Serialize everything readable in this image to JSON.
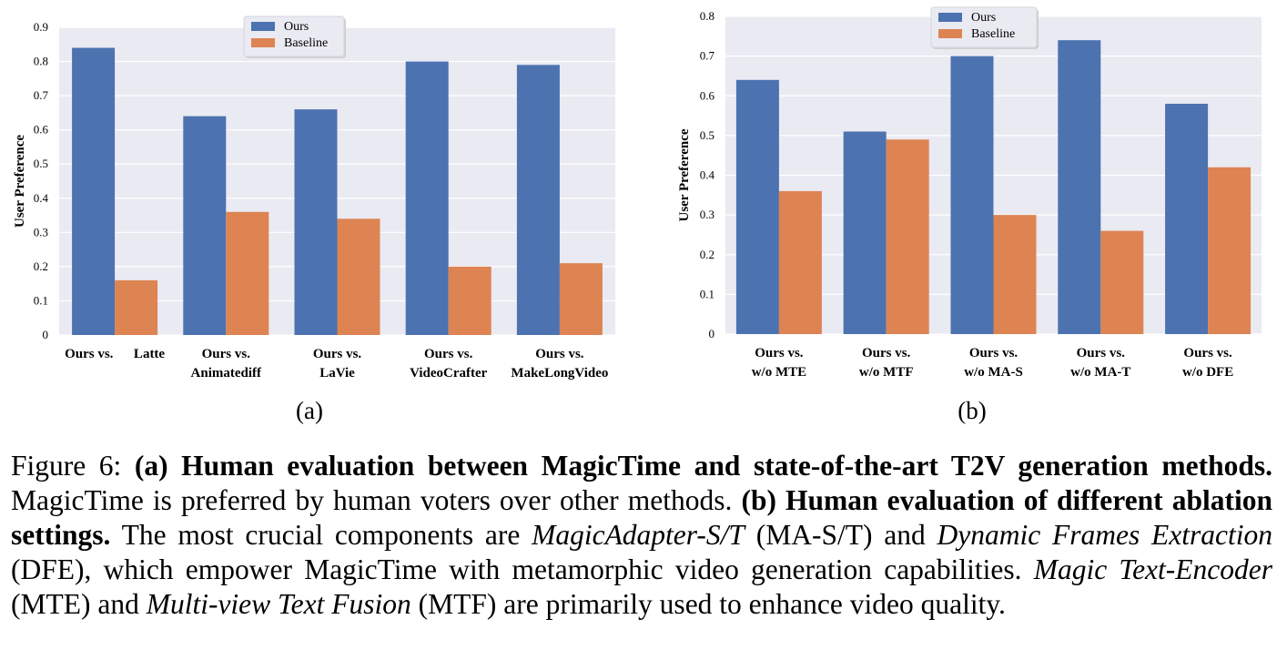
{
  "chart_data": [
    {
      "type": "bar",
      "ylabel": "User Preference",
      "ylim": [
        0,
        0.9
      ],
      "yticks": [
        "0",
        "0.1",
        "0.2",
        "0.3",
        "0.4",
        "0.5",
        "0.6",
        "0.7",
        "0.8",
        "0.9"
      ],
      "legend_position": "top-center",
      "grid": true,
      "categories": [
        [
          "Ours vs.      Latte"
        ],
        [
          "Ours vs.",
          "Animatediff"
        ],
        [
          "Ours vs.",
          "LaVie"
        ],
        [
          "Ours vs.",
          "VideoCrafter"
        ],
        [
          "Ours vs.",
          "MakeLongVideo"
        ]
      ],
      "series": [
        {
          "name": "Ours",
          "color": "#4c72b0",
          "values": [
            0.84,
            0.64,
            0.66,
            0.8,
            0.79
          ]
        },
        {
          "name": "Baseline",
          "color": "#dd8452",
          "values": [
            0.16,
            0.36,
            0.34,
            0.2,
            0.21
          ]
        }
      ],
      "panel_label": "(a)"
    },
    {
      "type": "bar",
      "ylabel": "User Preference",
      "ylim": [
        0,
        0.8
      ],
      "yticks": [
        "0",
        "0.1",
        "0.2",
        "0.3",
        "0.4",
        "0.5",
        "0.6",
        "0.7",
        "0.8"
      ],
      "legend_position": "top-center",
      "grid": true,
      "categories": [
        [
          "Ours vs.",
          "w/o MTE"
        ],
        [
          "Ours vs.",
          "w/o MTF"
        ],
        [
          "Ours vs.",
          "w/o MA-S"
        ],
        [
          "Ours vs.",
          "w/o MA-T"
        ],
        [
          "Ours vs.",
          "w/o DFE"
        ]
      ],
      "series": [
        {
          "name": "Ours",
          "color": "#4c72b0",
          "values": [
            0.64,
            0.51,
            0.7,
            0.74,
            0.58
          ]
        },
        {
          "name": "Baseline",
          "color": "#dd8452",
          "values": [
            0.36,
            0.49,
            0.3,
            0.26,
            0.42
          ]
        }
      ],
      "panel_label": "(b)"
    }
  ],
  "caption": {
    "figure_label": "Figure 6:",
    "a_title": "(a) Human evaluation between MagicTime and state-of-the-art T2V generation methods.",
    "a_text": "MagicTime is preferred by human voters over other methods.",
    "b_title": "(b) Human evaluation of different ablation settings.",
    "b_text_1": "The most crucial components are",
    "term_mast": "MagicAdapter-S/T",
    "abbr_mast": "(MA-S/T) and",
    "term_dfe": "Dynamic Frames Extraction",
    "abbr_dfe": "(DFE), which empower MagicTime with metamorphic video generation capabilities.",
    "term_mte": "Magic Text-Encoder",
    "abbr_mte": "(MTE) and",
    "term_mtf": "Multi-view Text Fusion",
    "abbr_mtf": "(MTF) are primarily used to enhance video quality."
  }
}
